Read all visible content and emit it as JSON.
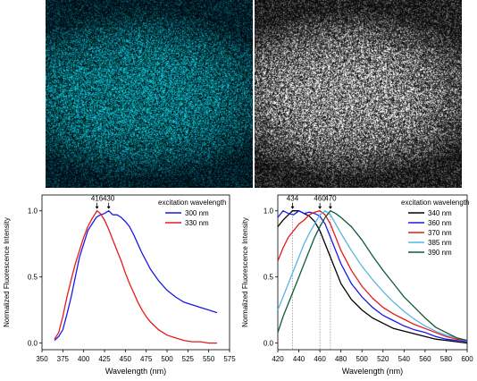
{
  "images": {
    "left": {
      "colormap": "cyan-green fluorescence on black",
      "tint": "#22c8d0"
    },
    "right": {
      "colormap": "grayscale",
      "tint": "#ffffff"
    }
  },
  "chart_data": [
    {
      "type": "line",
      "xlabel": "Wavelength (nm)",
      "ylabel": "Normalized Fluorescence Intensity",
      "xlim": [
        350,
        575
      ],
      "ylim": [
        -0.05,
        1.12
      ],
      "xticks": [
        "350",
        "375",
        "400",
        "425",
        "450",
        "475",
        "500",
        "525",
        "550",
        "575"
      ],
      "yticks": [
        "0.0",
        "0.5",
        "1.0"
      ],
      "legend_title": "excitation wavelength",
      "legend_position": "top-right",
      "annotations": [
        {
          "text": "416",
          "x": 416
        },
        {
          "text": "430",
          "x": 430
        }
      ],
      "series": [
        {
          "name": "300 nm",
          "color": "#1a1ae6",
          "x": [
            365,
            370,
            375,
            380,
            385,
            390,
            395,
            400,
            405,
            410,
            415,
            420,
            425,
            430,
            435,
            440,
            445,
            450,
            455,
            460,
            465,
            470,
            475,
            480,
            490,
            500,
            510,
            520,
            530,
            540,
            550,
            560
          ],
          "y": [
            0.02,
            0.05,
            0.1,
            0.22,
            0.35,
            0.5,
            0.65,
            0.75,
            0.85,
            0.9,
            0.95,
            0.97,
            0.98,
            1.0,
            0.97,
            0.97,
            0.95,
            0.92,
            0.88,
            0.82,
            0.75,
            0.68,
            0.62,
            0.56,
            0.47,
            0.4,
            0.35,
            0.31,
            0.29,
            0.27,
            0.25,
            0.23
          ]
        },
        {
          "name": "330 nm",
          "color": "#e61a1a",
          "x": [
            365,
            370,
            375,
            380,
            385,
            390,
            395,
            400,
            405,
            410,
            416,
            420,
            425,
            430,
            435,
            440,
            445,
            450,
            455,
            460,
            465,
            470,
            475,
            480,
            490,
            500,
            510,
            520,
            530,
            540,
            550,
            560
          ],
          "y": [
            0.03,
            0.08,
            0.2,
            0.35,
            0.48,
            0.6,
            0.7,
            0.8,
            0.88,
            0.94,
            1.0,
            0.98,
            0.93,
            0.86,
            0.78,
            0.7,
            0.62,
            0.53,
            0.45,
            0.38,
            0.31,
            0.25,
            0.2,
            0.16,
            0.1,
            0.06,
            0.04,
            0.02,
            0.01,
            0.01,
            0.0,
            0.0
          ]
        }
      ]
    },
    {
      "type": "line",
      "xlabel": "Wavelength (nm)",
      "ylabel": "Normalized Fluorescence Intensity",
      "xlim": [
        420,
        600
      ],
      "ylim": [
        -0.05,
        1.12
      ],
      "xticks": [
        "420",
        "440",
        "460",
        "480",
        "500",
        "520",
        "540",
        "560",
        "580",
        "600"
      ],
      "yticks": [
        "0.0",
        "0.5",
        "1.0"
      ],
      "legend_title": "excitation wavelength",
      "legend_position": "top-right",
      "annotations": [
        {
          "text": "434",
          "x": 434
        },
        {
          "text": "460",
          "x": 460
        },
        {
          "text": "470",
          "x": 470
        }
      ],
      "series": [
        {
          "name": "340 nm",
          "color": "#000000",
          "x": [
            420,
            425,
            430,
            434,
            440,
            445,
            450,
            455,
            460,
            465,
            470,
            475,
            480,
            490,
            500,
            510,
            520,
            530,
            540,
            550,
            560,
            570,
            580,
            590,
            600
          ],
          "y": [
            0.88,
            0.93,
            0.97,
            1.0,
            1.0,
            0.98,
            0.96,
            0.92,
            0.85,
            0.75,
            0.65,
            0.55,
            0.45,
            0.33,
            0.25,
            0.19,
            0.15,
            0.11,
            0.09,
            0.07,
            0.05,
            0.03,
            0.02,
            0.01,
            0.0
          ]
        },
        {
          "name": "360 nm",
          "color": "#1a1ae6",
          "x": [
            420,
            425,
            430,
            435,
            440,
            445,
            450,
            455,
            460,
            465,
            470,
            475,
            480,
            490,
            500,
            510,
            520,
            530,
            540,
            550,
            560,
            570,
            580,
            590,
            600
          ],
          "y": [
            0.95,
            1.0,
            0.98,
            0.97,
            1.0,
            0.98,
            0.99,
            0.98,
            0.96,
            0.9,
            0.8,
            0.7,
            0.6,
            0.45,
            0.35,
            0.27,
            0.21,
            0.17,
            0.13,
            0.1,
            0.08,
            0.05,
            0.03,
            0.02,
            0.01
          ]
        },
        {
          "name": "370 nm",
          "color": "#e61a1a",
          "x": [
            420,
            425,
            430,
            435,
            440,
            445,
            450,
            455,
            460,
            465,
            470,
            475,
            480,
            490,
            500,
            510,
            520,
            530,
            540,
            550,
            560,
            570,
            580,
            590,
            600
          ],
          "y": [
            0.62,
            0.72,
            0.8,
            0.85,
            0.9,
            0.93,
            0.97,
            0.99,
            1.0,
            0.97,
            0.9,
            0.8,
            0.7,
            0.55,
            0.43,
            0.34,
            0.27,
            0.22,
            0.18,
            0.14,
            0.11,
            0.08,
            0.05,
            0.03,
            0.02
          ]
        },
        {
          "name": "385 nm",
          "color": "#5ab4e6",
          "x": [
            420,
            425,
            430,
            435,
            440,
            445,
            450,
            455,
            460,
            465,
            470,
            475,
            480,
            490,
            500,
            510,
            520,
            530,
            540,
            550,
            560,
            570,
            580,
            590,
            600
          ],
          "y": [
            0.25,
            0.35,
            0.45,
            0.55,
            0.65,
            0.75,
            0.83,
            0.9,
            0.97,
            1.0,
            0.97,
            0.9,
            0.83,
            0.7,
            0.58,
            0.48,
            0.39,
            0.31,
            0.24,
            0.18,
            0.13,
            0.09,
            0.06,
            0.04,
            0.02
          ]
        },
        {
          "name": "390 nm",
          "color": "#0f5a3c",
          "x": [
            420,
            425,
            430,
            435,
            440,
            445,
            450,
            455,
            460,
            465,
            470,
            475,
            480,
            490,
            500,
            510,
            520,
            530,
            540,
            550,
            560,
            570,
            580,
            590,
            600
          ],
          "y": [
            0.08,
            0.2,
            0.3,
            0.4,
            0.5,
            0.6,
            0.7,
            0.8,
            0.88,
            0.95,
            1.0,
            0.98,
            0.95,
            0.88,
            0.78,
            0.66,
            0.55,
            0.45,
            0.35,
            0.27,
            0.19,
            0.12,
            0.08,
            0.04,
            0.02
          ]
        }
      ]
    }
  ]
}
